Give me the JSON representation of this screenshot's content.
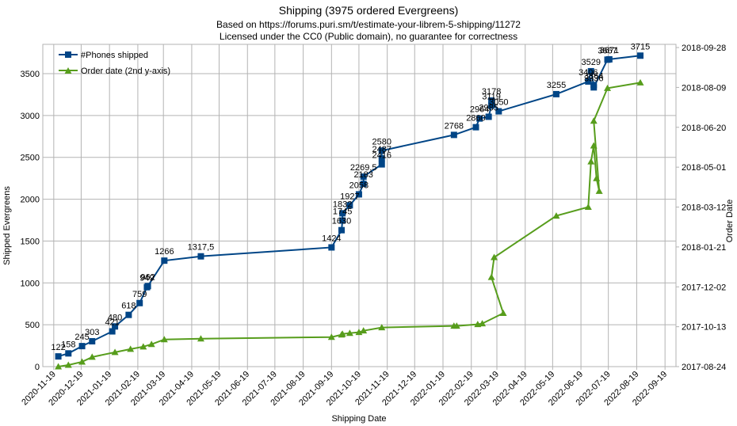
{
  "colors": {
    "blue": "#004586",
    "green": "#579d1c",
    "grid": "#b3b3b3",
    "axis": "#b3b3b3"
  },
  "chart_data": {
    "type": "line",
    "title": "Shipping (3975 ordered Evergreens)",
    "subtitle_lines": [
      "Based on https://forums.puri.sm/t/estimate-your-librem-5-shipping/11272",
      "Licensed under the CC0 (Public domain), no guarantee for correctness"
    ],
    "xlabel": "Shipping Date",
    "ylabel": "Shipped Evergreens",
    "y2label": "Order Date",
    "grid": true,
    "legend_position": "top-left",
    "x_ticks": [
      "2020-11-19",
      "2020-12-19",
      "2021-01-19",
      "2021-02-19",
      "2021-03-19",
      "2021-04-19",
      "2021-05-19",
      "2021-06-19",
      "2021-07-19",
      "2021-08-19",
      "2021-09-19",
      "2021-10-19",
      "2021-11-19",
      "2021-12-19",
      "2022-01-19",
      "2022-02-19",
      "2022-03-19",
      "2022-04-19",
      "2022-05-19",
      "2022-06-19",
      "2022-07-19",
      "2022-08-19",
      "2022-09-19"
    ],
    "y_ticks": [
      "0",
      "500",
      "1000",
      "1500",
      "2000",
      "2500",
      "3000",
      "3500"
    ],
    "y_range": [
      0,
      3850
    ],
    "y2_ticks": [
      "2017-08-24",
      "2017-10-13",
      "2017-12-02",
      "2018-01-21",
      "2018-03-12",
      "2018-05-01",
      "2018-06-20",
      "2018-08-09",
      "2018-09-28"
    ],
    "y2_range": [
      "2017-08-24",
      "2018-10-02"
    ],
    "series": [
      {
        "name": "#Phones shipped",
        "axis": "left",
        "points": [
          {
            "x": "2020-11-24",
            "y": 122,
            "label": "122"
          },
          {
            "x": "2020-12-05",
            "y": 158,
            "label": "158"
          },
          {
            "x": "2020-12-20",
            "y": 245,
            "label": "245"
          },
          {
            "x": "2020-12-31",
            "y": 303,
            "label": "303"
          },
          {
            "x": "2021-01-22",
            "y": 421,
            "label": "421"
          },
          {
            "x": "2021-01-25",
            "y": 480,
            "label": "480"
          },
          {
            "x": "2021-02-09",
            "y": 618,
            "label": "618"
          },
          {
            "x": "2021-02-21",
            "y": 759,
            "label": "759"
          },
          {
            "x": "2021-03-01",
            "y": 949,
            "label": "949"
          },
          {
            "x": "2021-03-02",
            "y": 962,
            "label": "962"
          },
          {
            "x": "2021-03-20",
            "y": 1266,
            "label": "1266"
          },
          {
            "x": "2021-04-29",
            "y": 1317.5,
            "label": "1317,5"
          },
          {
            "x": "2021-09-19",
            "y": 1424,
            "label": "1424"
          },
          {
            "x": "2021-09-30",
            "y": 1630,
            "label": "1630"
          },
          {
            "x": "2021-10-01",
            "y": 1745,
            "label": "1745"
          },
          {
            "x": "2021-10-01",
            "y": 1832,
            "label": "1832"
          },
          {
            "x": "2021-10-09",
            "y": 1927,
            "label": "1927"
          },
          {
            "x": "2021-10-19",
            "y": 2058,
            "label": "2058"
          },
          {
            "x": "2021-10-24",
            "y": 2183,
            "label": "2183"
          },
          {
            "x": "2021-10-24",
            "y": 2269.5,
            "label": "2269,5"
          },
          {
            "x": "2021-11-13",
            "y": 2416,
            "label": "2416"
          },
          {
            "x": "2021-11-13",
            "y": 2487,
            "label": "2487"
          },
          {
            "x": "2021-11-13",
            "y": 2580,
            "label": "2580"
          },
          {
            "x": "2022-01-31",
            "y": 2768,
            "label": "2768"
          },
          {
            "x": "2022-02-24",
            "y": 2860,
            "label": "2860"
          },
          {
            "x": "2022-02-28",
            "y": 2964,
            "label": "2964"
          },
          {
            "x": "2022-03-10",
            "y": 2985,
            "label": "2985"
          },
          {
            "x": "2022-03-13",
            "y": 3119,
            "label": "3119"
          },
          {
            "x": "2022-03-13",
            "y": 3178,
            "label": "3178"
          },
          {
            "x": "2022-03-21",
            "y": 3050,
            "label": "3050"
          },
          {
            "x": "2022-05-23",
            "y": 3255,
            "label": "3255"
          },
          {
            "x": "2022-06-27",
            "y": 3406,
            "label": "3406"
          },
          {
            "x": "2022-06-30",
            "y": 3529,
            "label": "3529"
          },
          {
            "x": "2022-07-03",
            "y": 3364,
            "label": "3364"
          },
          {
            "x": "2022-07-03",
            "y": 3336,
            "label": "3336"
          },
          {
            "x": "2022-07-18",
            "y": 3667,
            "label": "3667"
          },
          {
            "x": "2022-07-20",
            "y": 3671,
            "label": "3671"
          },
          {
            "x": "2022-08-23",
            "y": 3715,
            "label": "3715"
          }
        ]
      },
      {
        "name": "Order date (2nd y-axis)",
        "axis": "right",
        "points": [
          {
            "x": "2020-11-24",
            "y": "2017-08-24"
          },
          {
            "x": "2020-12-05",
            "y": "2017-08-26"
          },
          {
            "x": "2020-12-20",
            "y": "2017-08-30"
          },
          {
            "x": "2020-12-31",
            "y": "2017-09-05"
          },
          {
            "x": "2021-01-25",
            "y": "2017-09-11"
          },
          {
            "x": "2021-02-11",
            "y": "2017-09-15"
          },
          {
            "x": "2021-02-25",
            "y": "2017-09-18"
          },
          {
            "x": "2021-03-06",
            "y": "2017-09-21"
          },
          {
            "x": "2021-03-20",
            "y": "2017-09-27"
          },
          {
            "x": "2021-04-29",
            "y": "2017-09-28"
          },
          {
            "x": "2021-09-19",
            "y": "2017-09-30"
          },
          {
            "x": "2021-09-30",
            "y": "2017-10-03"
          },
          {
            "x": "2021-10-01",
            "y": "2017-10-04"
          },
          {
            "x": "2021-10-09",
            "y": "2017-10-05"
          },
          {
            "x": "2021-10-19",
            "y": "2017-10-06"
          },
          {
            "x": "2021-10-24",
            "y": "2017-10-08"
          },
          {
            "x": "2021-11-13",
            "y": "2017-10-12"
          },
          {
            "x": "2022-01-31",
            "y": "2017-10-14"
          },
          {
            "x": "2022-02-03",
            "y": "2017-10-14"
          },
          {
            "x": "2022-02-26",
            "y": "2017-10-16"
          },
          {
            "x": "2022-03-03",
            "y": "2017-10-17"
          },
          {
            "x": "2022-03-26",
            "y": "2017-10-30"
          },
          {
            "x": "2022-03-13",
            "y": "2017-12-14"
          },
          {
            "x": "2022-03-16",
            "y": "2018-01-08"
          },
          {
            "x": "2022-05-23",
            "y": "2018-03-01"
          },
          {
            "x": "2022-06-27",
            "y": "2018-03-12"
          },
          {
            "x": "2022-06-30",
            "y": "2018-05-08"
          },
          {
            "x": "2022-07-03",
            "y": "2018-05-28"
          },
          {
            "x": "2022-07-06",
            "y": "2018-04-17"
          },
          {
            "x": "2022-07-09",
            "y": "2018-04-01"
          },
          {
            "x": "2022-07-03",
            "y": "2018-06-28"
          },
          {
            "x": "2022-07-18",
            "y": "2018-08-08"
          },
          {
            "x": "2022-08-23",
            "y": "2018-08-15"
          }
        ]
      }
    ]
  }
}
